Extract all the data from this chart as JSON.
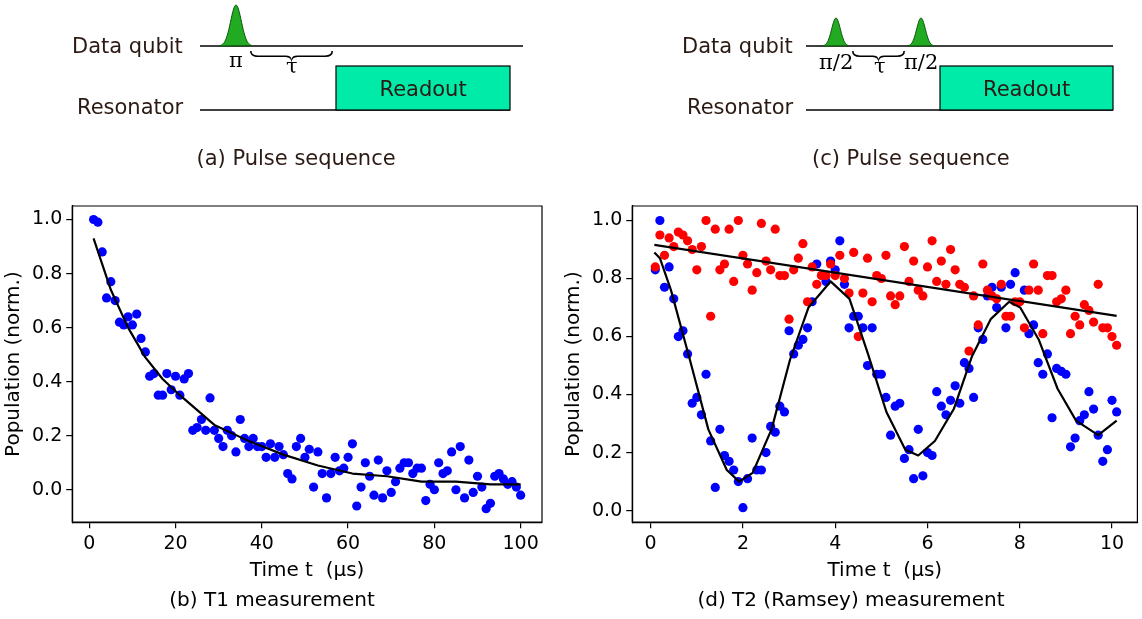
{
  "chart_data": [
    {
      "type": "other",
      "title": "(a) Pulse sequence",
      "annotations": [
        "Data qubit",
        "Resonator",
        "π",
        "τ",
        "Readout"
      ]
    },
    {
      "type": "other",
      "title": "(c) Pulse sequence",
      "annotations": [
        "Data qubit",
        "Resonator",
        "π/2",
        "τ",
        "π/2",
        "Readout"
      ]
    },
    {
      "type": "scatter",
      "title": "(b) T1 measurement",
      "xlabel": "Time t  (μs)",
      "ylabel": "Population (norm.)",
      "xlim": [
        -3.95,
        104.95
      ],
      "xticks": [
        0,
        20,
        40,
        60,
        80,
        100
      ],
      "ylim": [
        -0.12,
        1.05
      ],
      "yticks": [
        {
          "value": 0,
          "label": "0.0"
        },
        {
          "value": 0.2,
          "label": "0.2"
        },
        {
          "value": 0.4,
          "label": "0.4"
        },
        {
          "value": 0.6,
          "label": "0.6"
        },
        {
          "value": 0.8,
          "label": "0.8"
        },
        {
          "value": 1,
          "label": "1.0"
        }
      ],
      "grid": false,
      "x": [
        1,
        2,
        3,
        4,
        5,
        6,
        7,
        8,
        9,
        10,
        11,
        12,
        13,
        14,
        15,
        16,
        17,
        18,
        19,
        20,
        21,
        22,
        23,
        24,
        25,
        26,
        27,
        28,
        29,
        30,
        31,
        32,
        33,
        34,
        35,
        36,
        37,
        38,
        39,
        40,
        41,
        42,
        43,
        44,
        45,
        46,
        47,
        48,
        49,
        50,
        51,
        52,
        53,
        54,
        55,
        56,
        57,
        58,
        59,
        60,
        61,
        62,
        63,
        64,
        65,
        66,
        67,
        68,
        69,
        70,
        71,
        72,
        73,
        74,
        75,
        76,
        77,
        78,
        79,
        80,
        81,
        82,
        83,
        84,
        85,
        86,
        87,
        88,
        89,
        90,
        91,
        92,
        93,
        94,
        95,
        96,
        97,
        98,
        99,
        100
      ],
      "series": [
        {
          "type": "scatter",
          "color": "#0000ff",
          "marker": "circle",
          "values": [
            1.0,
            0.99,
            0.88,
            0.71,
            0.77,
            0.7,
            0.62,
            0.61,
            0.64,
            0.61,
            0.65,
            0.56,
            0.51,
            0.42,
            0.43,
            0.35,
            0.35,
            0.43,
            0.37,
            0.42,
            0.35,
            0.41,
            0.43,
            0.22,
            0.23,
            0.26,
            0.22,
            0.34,
            0.22,
            0.19,
            0.16,
            0.22,
            0.2,
            0.14,
            0.26,
            0.19,
            0.16,
            0.19,
            0.16,
            0.16,
            0.12,
            0.17,
            0.12,
            0.16,
            0.13,
            0.06,
            0.04,
            0.16,
            0.19,
            0.12,
            0.15,
            0.01,
            0.14,
            0.06,
            -0.03,
            0.06,
            0.12,
            0.07,
            0.08,
            0.12,
            0.17,
            -0.06,
            0.01,
            0.1,
            0.05,
            -0.02,
            0.11,
            -0.03,
            0.07,
            -0.01,
            0.03,
            0.08,
            0.1,
            0.1,
            0.06,
            0.08,
            0.08,
            -0.04,
            0.02,
            0.0,
            0.1,
            0.06,
            0.07,
            0.14,
            0.0,
            0.16,
            -0.03,
            0.11,
            -0.01,
            0.05,
            0.01,
            -0.07,
            -0.05,
            0.05,
            0.06,
            0.04,
            0.02,
            0.03,
            0.01,
            -0.02
          ]
        },
        {
          "type": "line",
          "color": "#000000",
          "marker": "none",
          "line_style": "solid",
          "x": [
            1,
            5,
            9,
            13,
            17,
            21,
            29,
            37,
            45,
            53,
            61,
            69,
            77,
            85,
            93,
            100
          ],
          "values": [
            0.93,
            0.74,
            0.6,
            0.49,
            0.41,
            0.35,
            0.24,
            0.18,
            0.13,
            0.09,
            0.06,
            0.05,
            0.03,
            0.03,
            0.02,
            0.02
          ]
        }
      ]
    },
    {
      "type": "scatter",
      "title": "(d) T2 (Ramsey) measurement",
      "xlabel": "Time t  (μs)",
      "ylabel": "Population (norm.)",
      "xlim": [
        -0.4,
        10.55
      ],
      "xticks": [
        0,
        2,
        4,
        6,
        8,
        10
      ],
      "ylim": [
        -0.04,
        1.05
      ],
      "yticks": [
        {
          "value": 0,
          "label": "0.0"
        },
        {
          "value": 0.2,
          "label": "0.2"
        },
        {
          "value": 0.4,
          "label": "0.4"
        },
        {
          "value": 0.6,
          "label": "0.6"
        },
        {
          "value": 0.8,
          "label": "0.8"
        },
        {
          "value": 1,
          "label": "1.0"
        }
      ],
      "grid": false,
      "x": [
        0.1,
        0.2,
        0.3,
        0.4,
        0.5,
        0.6,
        0.7,
        0.8,
        0.9,
        1.0,
        1.1,
        1.2,
        1.3,
        1.4,
        1.5,
        1.6,
        1.7,
        1.8,
        1.9,
        2.0,
        2.1,
        2.2,
        2.3,
        2.4,
        2.5,
        2.6,
        2.7,
        2.8,
        2.9,
        3.0,
        3.1,
        3.2,
        3.3,
        3.4,
        3.5,
        3.6,
        3.7,
        3.8,
        3.9,
        4.0,
        4.1,
        4.2,
        4.3,
        4.4,
        4.5,
        4.6,
        4.7,
        4.8,
        4.9,
        5.0,
        5.1,
        5.2,
        5.3,
        5.4,
        5.5,
        5.6,
        5.7,
        5.8,
        5.9,
        6.0,
        6.1,
        6.2,
        6.3,
        6.4,
        6.5,
        6.6,
        6.7,
        6.8,
        6.9,
        7.0,
        7.1,
        7.2,
        7.3,
        7.4,
        7.5,
        7.6,
        7.7,
        7.8,
        7.9,
        8.0,
        8.1,
        8.2,
        8.3,
        8.4,
        8.5,
        8.6,
        8.7,
        8.8,
        8.9,
        9.0,
        9.1,
        9.2,
        9.3,
        9.4,
        9.5,
        9.6,
        9.7,
        9.8,
        9.9,
        10.0,
        10.1
      ],
      "series": [
        {
          "type": "scatter",
          "color": "#ff0000",
          "marker": "circle",
          "values": [
            0.84,
            0.95,
            0.88,
            0.94,
            0.91,
            0.96,
            0.95,
            0.93,
            0.9,
            0.83,
            0.91,
            1.0,
            0.67,
            0.97,
            0.83,
            0.85,
            0.97,
            0.79,
            1.0,
            0.88,
            0.85,
            0.76,
            0.82,
            0.99,
            0.86,
            0.83,
            0.97,
            0.81,
            0.81,
            0.66,
            0.83,
            0.87,
            0.92,
            0.72,
            0.84,
            0.78,
            0.81,
            0.81,
            0.85,
            0.81,
            0.88,
            0.8,
            0.75,
            0.89,
            0.6,
            0.75,
            0.87,
            0.72,
            0.81,
            0.8,
            0.88,
            0.74,
            0.71,
            0.74,
            0.91,
            0.79,
            0.86,
            0.76,
            0.74,
            0.84,
            0.93,
            0.79,
            0.86,
            0.78,
            0.9,
            0.83,
            0.78,
            0.77,
            0.55,
            0.74,
            0.64,
            0.85,
            0.76,
            0.74,
            0.73,
            0.78,
            0.67,
            0.67,
            0.72,
            0.72,
            0.63,
            0.76,
            0.85,
            0.76,
            0.61,
            0.81,
            0.81,
            0.72,
            0.73,
            0.76,
            0.61,
            0.67,
            0.64,
            0.71,
            0.69,
            0.65,
            0.78,
            0.63,
            0.63,
            0.6,
            0.57
          ]
        },
        {
          "type": "scatter",
          "color": "#0000ff",
          "marker": "circle",
          "values": [
            0.83,
            1.0,
            0.77,
            0.84,
            0.73,
            0.6,
            0.62,
            0.54,
            0.37,
            0.39,
            0.33,
            0.47,
            0.24,
            0.08,
            0.28,
            0.19,
            0.17,
            0.14,
            0.1,
            0.01,
            0.11,
            0.25,
            0.14,
            0.14,
            0.2,
            0.29,
            0.27,
            0.36,
            0.34,
            0.62,
            0.54,
            0.57,
            0.59,
            0.63,
            0.72,
            0.85,
            null,
            0.79,
            0.86,
            0.83,
            0.93,
            0.78,
            0.63,
            0.67,
            0.67,
            0.63,
            0.5,
            0.63,
            0.47,
            0.47,
            0.39,
            0.26,
            0.36,
            0.37,
            0.18,
            0.21,
            0.11,
            0.28,
            0.12,
            0.2,
            0.19,
            0.41,
            0.36,
            0.33,
            0.38,
            0.43,
            0.37,
            0.51,
            0.49,
            0.39,
            0.63,
            0.59,
            0.74,
            0.77,
            0.7,
            0.77,
            0.63,
            0.78,
            0.82,
            null,
            0.76,
            0.61,
            0.64,
            0.51,
            0.47,
            0.54,
            0.32,
            0.49,
            0.48,
            0.47,
            0.22,
            0.25,
            0.31,
            0.33,
            0.41,
            0.35,
            0.26,
            0.17,
            0.21,
            0.38,
            0.34
          ]
        },
        {
          "type": "line",
          "color": "#000000",
          "marker": "none",
          "line_style": "solid",
          "x": [
            0.08,
            10.1
          ],
          "values": [
            0.916,
            0.671
          ]
        },
        {
          "type": "line",
          "color": "#000000",
          "marker": "none",
          "line_style": "solid",
          "x": [
            0.08,
            0.2,
            0.44,
            0.85,
            1.25,
            1.65,
            1.92,
            2.21,
            2.62,
            3.02,
            3.42,
            3.9,
            4.31,
            4.71,
            5.11,
            5.52,
            5.8,
            6.16,
            6.57,
            6.96,
            7.37,
            7.77,
            8.01,
            8.41,
            8.82,
            9.22,
            9.7,
            10.1
          ],
          "values": [
            0.89,
            0.87,
            0.76,
            0.52,
            0.28,
            0.14,
            0.1,
            0.13,
            0.28,
            0.52,
            0.7,
            0.79,
            0.73,
            0.54,
            0.34,
            0.21,
            0.19,
            0.24,
            0.35,
            0.53,
            0.66,
            0.72,
            0.7,
            0.59,
            0.42,
            0.31,
            0.26,
            0.31
          ]
        }
      ]
    }
  ]
}
